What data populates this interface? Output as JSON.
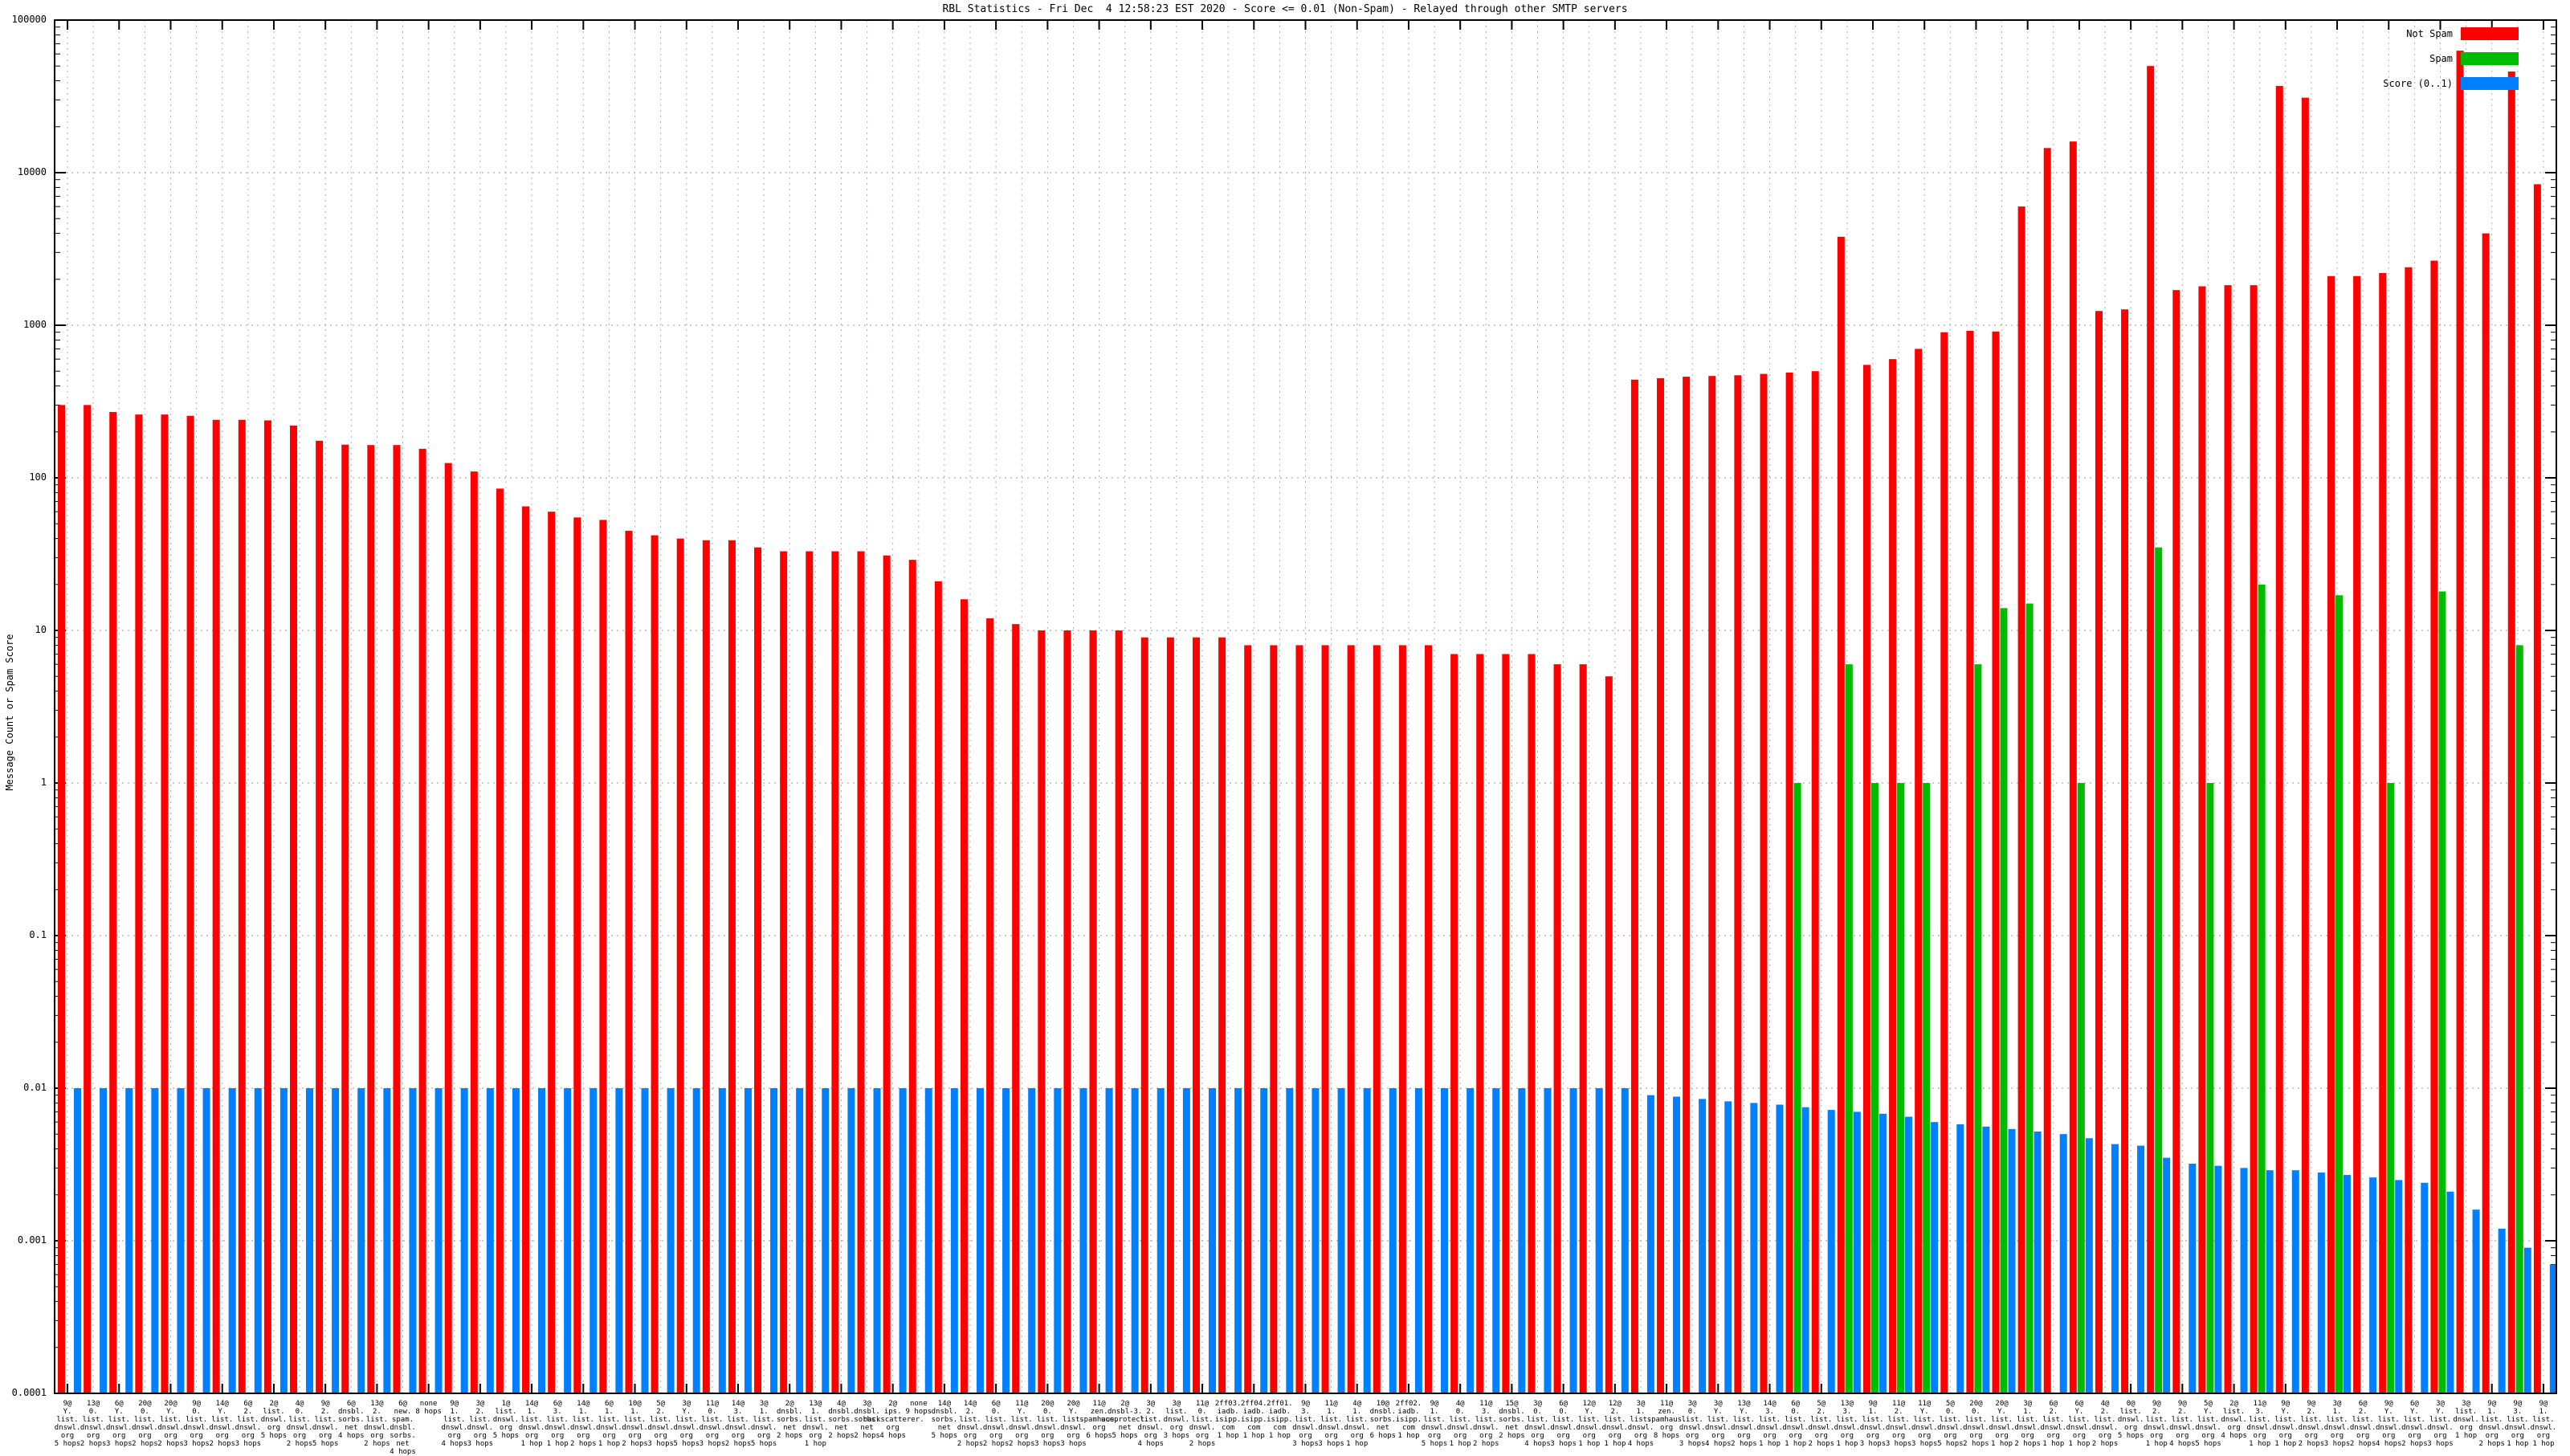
{
  "chart_data": {
    "type": "bar",
    "scale": "log",
    "title": "RBL Statistics - Fri Dec  4 12:58:23 EST 2020 - Score <= 0.01 (Non-Spam) - Relayed through other SMTP servers",
    "ylabel": "Message Count or Spam Score",
    "xlabel": "",
    "ylim": [
      0.0001,
      100000
    ],
    "y_ticks": [
      "100000",
      "10000",
      "1000",
      "100",
      "10",
      "1",
      "0.1",
      "0.01",
      "0.001",
      "0.0001"
    ],
    "grid": "dotted",
    "legend_position": "top-right",
    "legend": [
      {
        "label": "Not Spam",
        "color": "#ff0000"
      },
      {
        "label": "Spam",
        "color": "#00bb00"
      },
      {
        "label": "Score (0..1)",
        "color": "#0080ff"
      }
    ],
    "series_names": [
      "not_spam",
      "spam",
      "score"
    ],
    "groups": [
      {
        "label": "9@\nY.\nlist.\ndnswl.\norg\n5 hops",
        "not_spam": 300,
        "spam": 0,
        "score": 0.01
      },
      {
        "label": "13@\n0.\nlist.\ndnswl.\norg\n2 hops",
        "not_spam": 300,
        "spam": 0,
        "score": 0.01
      },
      {
        "label": "6@\nY.\nlist.\ndnswl.\norg\n3 hops",
        "not_spam": 270,
        "spam": 0,
        "score": 0.01
      },
      {
        "label": "20@\n0.\nlist.\ndnswl.\norg\n2 hops",
        "not_spam": 260,
        "spam": 0,
        "score": 0.01
      },
      {
        "label": "20@\nY.\nlist.\ndnswl.\norg\n2 hops",
        "not_spam": 260,
        "spam": 0,
        "score": 0.01
      },
      {
        "label": "9@\n0.\nlist.\ndnswl.\norg\n3 hops",
        "not_spam": 255,
        "spam": 0,
        "score": 0.01
      },
      {
        "label": "14@\nY.\nlist.\ndnswl.\norg\n2 hops",
        "not_spam": 240,
        "spam": 0,
        "score": 0.01
      },
      {
        "label": "6@\n2.\nlist.\ndnswl.\norg\n3 hops",
        "not_spam": 240,
        "spam": 0,
        "score": 0.01
      },
      {
        "label": "2@\nlist.\ndnswl.\norg\n5 hops",
        "not_spam": 238,
        "spam": 0,
        "score": 0.01
      },
      {
        "label": "4@\n0.\nlist.\ndnswl.\norg\n2 hops",
        "not_spam": 220,
        "spam": 0,
        "score": 0.01
      },
      {
        "label": "9@\n2.\nlist.\ndnswl.\norg\n5 hops",
        "not_spam": 175,
        "spam": 0,
        "score": 0.01
      },
      {
        "label": "6@\ndnsbl.\nsorbs.\nnet\n4 hops",
        "not_spam": 165,
        "spam": 0,
        "score": 0.01
      },
      {
        "label": "13@\n2.\nlist.\ndnswl.\norg\n2 hops",
        "not_spam": 164,
        "spam": 0,
        "score": 0.01
      },
      {
        "label": "6@\nnew.\nspam.\ndnsbl.\nsorbs.\nnet\n4 hops",
        "not_spam": 164,
        "spam": 0,
        "score": 0.01
      },
      {
        "label": "none\n8 hops",
        "not_spam": 155,
        "spam": 0,
        "score": 0.01
      },
      {
        "label": "9@\n1.\nlist.\ndnswl.\norg\n4 hops",
        "not_spam": 125,
        "spam": 0,
        "score": 0.01
      },
      {
        "label": "3@\n2.\nlist.\ndnswl.\norg\n3 hops",
        "not_spam": 110,
        "spam": 0,
        "score": 0.01
      },
      {
        "label": "1@\nlist.\ndnswl.\norg\n5 hops",
        "not_spam": 85,
        "spam": 0,
        "score": 0.01
      },
      {
        "label": "14@\n1.\nlist.\ndnswl.\norg\n1 hop",
        "not_spam": 65,
        "spam": 0,
        "score": 0.01
      },
      {
        "label": "6@\n3.\nlist.\ndnswl.\norg\n1 hop",
        "not_spam": 60,
        "spam": 0,
        "score": 0.01
      },
      {
        "label": "14@\n1.\nlist.\ndnswl.\norg\n2 hops",
        "not_spam": 55,
        "spam": 0,
        "score": 0.01
      },
      {
        "label": "6@\n1.\nlist.\ndnswl.\norg\n1 hop",
        "not_spam": 53,
        "spam": 0,
        "score": 0.01
      },
      {
        "label": "10@\n1.\nlist.\ndnswl.\norg\n2 hops",
        "not_spam": 45,
        "spam": 0,
        "score": 0.01
      },
      {
        "label": "5@\n2.\nlist.\ndnswl.\norg\n3 hops",
        "not_spam": 42,
        "spam": 0,
        "score": 0.01
      },
      {
        "label": "3@\nY.\nlist.\ndnswl.\norg\n5 hops",
        "not_spam": 40,
        "spam": 0,
        "score": 0.01
      },
      {
        "label": "11@\n0.\nlist.\ndnswl.\norg\n3 hops",
        "not_spam": 39,
        "spam": 0,
        "score": 0.01
      },
      {
        "label": "14@\n3.\nlist.\ndnswl.\norg\n2 hops",
        "not_spam": 39,
        "spam": 0,
        "score": 0.01
      },
      {
        "label": "3@\n1.\nlist.\ndnswl.\norg\n5 hops",
        "not_spam": 35,
        "spam": 0,
        "score": 0.01
      },
      {
        "label": "2@\ndnsbl.\nsorbs.\nnet\n2 hops",
        "not_spam": 33,
        "spam": 0,
        "score": 0.01
      },
      {
        "label": "13@\n1.\nlist.\ndnswl.\norg\n1 hop",
        "not_spam": 33,
        "spam": 0,
        "score": 0.01
      },
      {
        "label": "4@\ndnsbl.\nsorbs.\nnet\n2 hops",
        "not_spam": 33,
        "spam": 0,
        "score": 0.01
      },
      {
        "label": "3@\ndnsbl.\nsorbs.\nnet\n2 hops",
        "not_spam": 33,
        "spam": 0,
        "score": 0.01
      },
      {
        "label": "2@\nips.\nbackscatterer.\norg\n4 hops",
        "not_spam": 31,
        "spam": 0,
        "score": 0.01
      },
      {
        "label": "none\n9 hops",
        "not_spam": 29,
        "spam": 0,
        "score": 0.01
      },
      {
        "label": "14@\ndnsbl.\nsorbs.\nnet\n5 hops",
        "not_spam": 21,
        "spam": 0,
        "score": 0.01
      },
      {
        "label": "14@\n2.\nlist.\ndnswl.\norg\n2 hops",
        "not_spam": 16,
        "spam": 0,
        "score": 0.01
      },
      {
        "label": "6@\n0.\nlist.\ndnswl.\norg\n2 hops",
        "not_spam": 12,
        "spam": 0,
        "score": 0.01
      },
      {
        "label": "11@\nY.\nlist.\ndnswl.\norg\n2 hops",
        "not_spam": 11,
        "spam": 0,
        "score": 0.01
      },
      {
        "label": "20@\n0.\nlist.\ndnswl.\norg\n3 hops",
        "not_spam": 10,
        "spam": 0,
        "score": 0.01
      },
      {
        "label": "20@\nY.\nlist.\ndnswl.\norg\n3 hops",
        "not_spam": 10,
        "spam": 0,
        "score": 0.01
      },
      {
        "label": "11@\nzen.\nspamhaus.\norg\n6 hops",
        "not_spam": 10,
        "spam": 0,
        "score": 0.01
      },
      {
        "label": "2@\ndnsbl-3.\nuceprotect.\nnet\n5 hops",
        "not_spam": 10,
        "spam": 0,
        "score": 0.01
      },
      {
        "label": "3@\n2.\nlist.\ndnswl.\norg\n4 hops",
        "not_spam": 9,
        "spam": 0,
        "score": 0.01
      },
      {
        "label": "3@\nlist.\ndnswl.\norg\n3 hops",
        "not_spam": 9,
        "spam": 0,
        "score": 0.01
      },
      {
        "label": "11@\n0.\nlist.\ndnswl.\norg\n2 hops",
        "not_spam": 9,
        "spam": 0,
        "score": 0.01
      },
      {
        "label": "2ff03.\niadb.\nisipp.\ncom\n1 hop",
        "not_spam": 9,
        "spam": 0,
        "score": 0.01
      },
      {
        "label": "2ff04.\niadb.\nisipp.\ncom\n1 hop",
        "not_spam": 8,
        "spam": 0,
        "score": 0.01
      },
      {
        "label": "2ff01.\niadb.\nisipp.\ncom\n1 hop",
        "not_spam": 8,
        "spam": 0,
        "score": 0.01
      },
      {
        "label": "9@\n3.\nlist.\ndnswl.\norg\n3 hops",
        "not_spam": 8,
        "spam": 0,
        "score": 0.01
      },
      {
        "label": "11@\n1.\nlist.\ndnswl.\norg\n3 hops",
        "not_spam": 8,
        "spam": 0,
        "score": 0.01
      },
      {
        "label": "4@\n1.\nlist.\ndnswl.\norg\n1 hop",
        "not_spam": 8,
        "spam": 0,
        "score": 0.01
      },
      {
        "label": "10@\ndnsbl.\nsorbs.\nnet\n6 hops",
        "not_spam": 8,
        "spam": 0,
        "score": 0.01
      },
      {
        "label": "2ff02.\niadb.\nisipp.\ncom\n1 hop",
        "not_spam": 8,
        "spam": 0,
        "score": 0.01
      },
      {
        "label": "9@\n1.\nlist.\ndnswl.\norg\n5 hops",
        "not_spam": 8,
        "spam": 0,
        "score": 0.01
      },
      {
        "label": "4@\n0.\nlist.\ndnswl.\norg\n1 hop",
        "not_spam": 7,
        "spam": 0,
        "score": 0.01
      },
      {
        "label": "11@\n3.\nlist.\ndnswl.\norg\n2 hops",
        "not_spam": 7,
        "spam": 0,
        "score": 0.01
      },
      {
        "label": "15@\ndnsbl.\nsorbs.\nnet\n2 hops",
        "not_spam": 7,
        "spam": 0,
        "score": 0.01
      },
      {
        "label": "3@\n0.\nlist.\ndnswl.\norg\n4 hops",
        "not_spam": 7,
        "spam": 0,
        "score": 0.01
      },
      {
        "label": "6@\n0.\nlist.\ndnswl.\norg\n3 hops",
        "not_spam": 6,
        "spam": 0,
        "score": 0.01
      },
      {
        "label": "12@\nY.\nlist.\ndnswl.\norg\n1 hop",
        "not_spam": 6,
        "spam": 0,
        "score": 0.01
      },
      {
        "label": "12@\n2.\nlist.\ndnswl.\norg\n1 hop",
        "not_spam": 5,
        "spam": 0,
        "score": 0.01
      },
      {
        "label": "3@\n1.\nlist.\ndnswl.\norg\n4 hops",
        "not_spam": 440,
        "spam": 0,
        "score": 0.009
      },
      {
        "label": "11@\nzen.\nspamhaus.\norg\n8 hops",
        "not_spam": 450,
        "spam": 0,
        "score": 0.0088
      },
      {
        "label": "3@\n0.\nlist.\ndnswl.\norg\n3 hops",
        "not_spam": 460,
        "spam": 0,
        "score": 0.0085
      },
      {
        "label": "3@\nY.\nlist.\ndnswl.\norg\n4 hops",
        "not_spam": 465,
        "spam": 0,
        "score": 0.0082
      },
      {
        "label": "13@\nY.\nlist.\ndnswl.\norg\n2 hops",
        "not_spam": 470,
        "spam": 0,
        "score": 0.008
      },
      {
        "label": "14@\n3.\nlist.\ndnswl.\norg\n1 hop",
        "not_spam": 480,
        "spam": 0,
        "score": 0.0078
      },
      {
        "label": "6@\n0.\nlist.\ndnswl.\norg\n1 hop",
        "not_spam": 490,
        "spam": 1,
        "score": 0.0075
      },
      {
        "label": "5@\n2.\nlist.\ndnswl.\norg\n2 hops",
        "not_spam": 500,
        "spam": 0,
        "score": 0.0072
      },
      {
        "label": "13@\n3.\nlist.\ndnswl.\norg\n1 hop",
        "not_spam": 3800,
        "spam": 6,
        "score": 0.007
      },
      {
        "label": "9@\n1.\nlist.\ndnswl.\norg\n3 hops",
        "not_spam": 550,
        "spam": 1,
        "score": 0.0068
      },
      {
        "label": "11@\n2.\nlist.\ndnswl.\norg\n3 hops",
        "not_spam": 600,
        "spam": 1,
        "score": 0.0065
      },
      {
        "label": "11@\nY.\nlist.\ndnswl.\norg\n3 hops",
        "not_spam": 700,
        "spam": 1,
        "score": 0.006
      },
      {
        "label": "5@\n0.\nlist.\ndnswl.\norg\n5 hops",
        "not_spam": 900,
        "spam": 0,
        "score": 0.0058
      },
      {
        "label": "20@\n0.\nlist.\ndnswl.\norg\n2 hops",
        "not_spam": 920,
        "spam": 6,
        "score": 0.0056
      },
      {
        "label": "20@\nY.\nlist.\ndnswl.\norg\n1 hop",
        "not_spam": 910,
        "spam": 14,
        "score": 0.0054
      },
      {
        "label": "3@\n1.\nlist.\ndnswl.\norg\n2 hops",
        "not_spam": 6000,
        "spam": 15,
        "score": 0.0052
      },
      {
        "label": "6@\n2.\nlist.\ndnswl.\norg\n1 hop",
        "not_spam": 14500,
        "spam": 0,
        "score": 0.005
      },
      {
        "label": "6@\nY.\nlist.\ndnswl.\norg\n1 hop",
        "not_spam": 16000,
        "spam": 1,
        "score": 0.0047
      },
      {
        "label": "4@\n2.\nlist.\ndnswl.\norg\n2 hops",
        "not_spam": 1240,
        "spam": 0,
        "score": 0.0043
      },
      {
        "label": "0@\nlist.\ndnswl.\norg\n5 hops",
        "not_spam": 1270,
        "spam": 0,
        "score": 0.0042
      },
      {
        "label": "9@\n2.\nlist.\ndnswl.\norg\n1 hop",
        "not_spam": 50000,
        "spam": 35,
        "score": 0.0035
      },
      {
        "label": "9@\n2.\nlist.\ndnswl.\norg\n4 hops",
        "not_spam": 1700,
        "spam": 0,
        "score": 0.0032
      },
      {
        "label": "5@\nY.\nlist.\ndnswl.\norg\n5 hops",
        "not_spam": 1800,
        "spam": 1,
        "score": 0.0031
      },
      {
        "label": "2@\nlist.\ndnswl.\norg\n4 hops",
        "not_spam": 1830,
        "spam": 0,
        "score": 0.003
      },
      {
        "label": "11@\n3.\nlist.\ndnswl.\norg\n1 hop",
        "not_spam": 1830,
        "spam": 20,
        "score": 0.0029
      },
      {
        "label": "9@\nY.\nlist.\ndnswl.\norg\n1 hop",
        "not_spam": 37000,
        "spam": 0,
        "score": 0.0029
      },
      {
        "label": "9@\n2.\nlist.\ndnswl.\norg\n2 hops",
        "not_spam": 31000,
        "spam": 0,
        "score": 0.0028
      },
      {
        "label": "3@\n1.\nlist.\ndnswl.\norg\n3 hops",
        "not_spam": 2100,
        "spam": 17,
        "score": 0.0027
      },
      {
        "label": "6@\n2.\nlist.\ndnswl.\norg\n2 hops",
        "not_spam": 2100,
        "spam": 0,
        "score": 0.0026
      },
      {
        "label": "9@\nY.\nlist.\ndnswl.\norg\n4 hops",
        "not_spam": 2200,
        "spam": 1,
        "score": 0.0025
      },
      {
        "label": "6@\nY.\nlist.\ndnswl.\norg\n2 hops",
        "not_spam": 2400,
        "spam": 0,
        "score": 0.0024
      },
      {
        "label": "3@\nY.\nlist.\ndnswl.\norg\n3 hops",
        "not_spam": 2650,
        "spam": 18,
        "score": 0.0021
      },
      {
        "label": "3@\nlist.\ndnswl.\norg\n1 hop",
        "not_spam": 63000,
        "spam": 0,
        "score": 0.0016
      },
      {
        "label": "9@\n1.\nlist.\ndnswl.\norg\n2 hops",
        "not_spam": 4000,
        "spam": 0,
        "score": 0.0012
      },
      {
        "label": "9@\n3.\nlist.\ndnswl.\norg\n1 hop",
        "not_spam": 46000,
        "spam": 8,
        "score": 0.0009
      },
      {
        "label": "9@\n1.\nlist.\ndnswl.\norg\n1 hop",
        "not_spam": 8400,
        "spam": 0,
        "score": 0.0007
      }
    ]
  }
}
